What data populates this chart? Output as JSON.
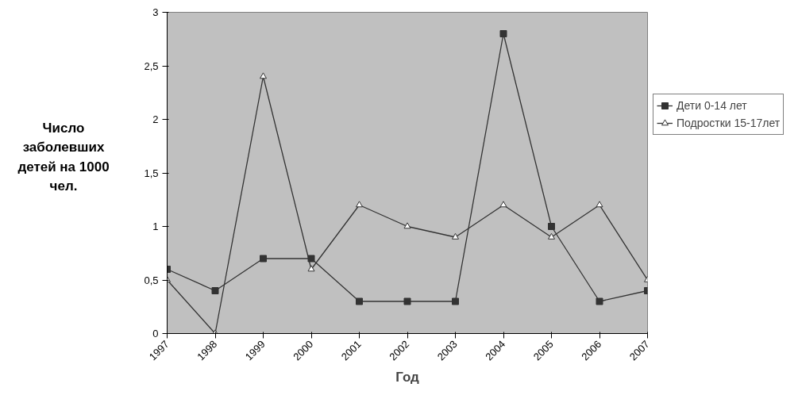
{
  "chart_data": {
    "type": "line",
    "xlabel": "Год",
    "ylabel": "Число заболевших детей на 1000 чел.",
    "categories": [
      "1997",
      "1998",
      "1999",
      "2000",
      "2001",
      "2002",
      "2003",
      "2004",
      "2005",
      "2006",
      "2007"
    ],
    "series": [
      {
        "name": "Дети 0-14 лет",
        "color": "#333333",
        "marker": "square",
        "values": [
          0.6,
          0.4,
          0.7,
          0.7,
          0.3,
          0.3,
          0.3,
          2.8,
          1.0,
          0.3,
          0.4
        ]
      },
      {
        "name": "Подростки 15-17лет",
        "color": "#333333",
        "marker": "triangle",
        "values": [
          0.5,
          0,
          2.4,
          0.6,
          1.2,
          1.0,
          0.9,
          1.2,
          0.9,
          1.2,
          0.5
        ]
      }
    ],
    "ylim": [
      0,
      3
    ],
    "yticks": [
      0,
      {
        "value": 0.5,
        "label": "0,5"
      },
      1,
      {
        "value": 1.5,
        "label": "1,5"
      },
      2,
      {
        "value": 2.5,
        "label": "2,5"
      },
      3
    ],
    "grid": false,
    "legend": "right",
    "line_style": "solid"
  }
}
